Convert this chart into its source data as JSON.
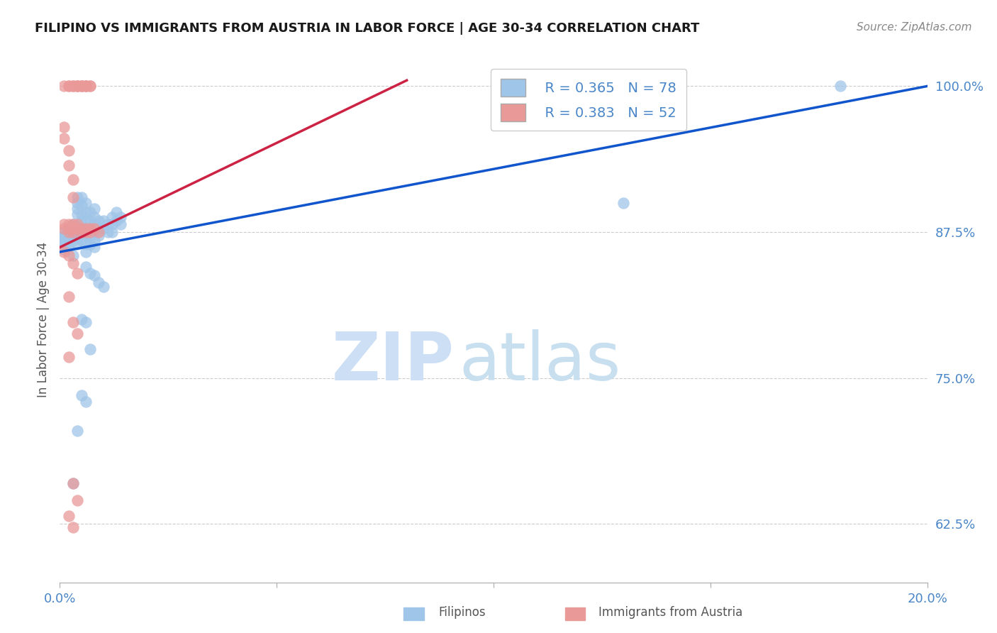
{
  "title": "FILIPINO VS IMMIGRANTS FROM AUSTRIA IN LABOR FORCE | AGE 30-34 CORRELATION CHART",
  "source": "Source: ZipAtlas.com",
  "ylabel": "In Labor Force | Age 30-34",
  "yticks": [
    0.625,
    0.75,
    0.875,
    1.0
  ],
  "ytick_labels": [
    "62.5%",
    "75.0%",
    "87.5%",
    "100.0%"
  ],
  "xmin": 0.0,
  "xmax": 0.2,
  "ymin": 0.575,
  "ymax": 1.025,
  "legend_blue_r": "R = 0.365",
  "legend_blue_n": "N = 78",
  "legend_pink_r": "R = 0.383",
  "legend_pink_n": "N = 52",
  "blue_color": "#9fc5e8",
  "pink_color": "#ea9999",
  "line_blue": "#1155cc",
  "line_pink": "#cc2244",
  "blue_scatter": [
    [
      0.001,
      0.875
    ],
    [
      0.001,
      0.872
    ],
    [
      0.001,
      0.87
    ],
    [
      0.001,
      0.868
    ],
    [
      0.001,
      0.865
    ],
    [
      0.001,
      0.863
    ],
    [
      0.001,
      0.86
    ],
    [
      0.002,
      0.878
    ],
    [
      0.002,
      0.875
    ],
    [
      0.002,
      0.872
    ],
    [
      0.002,
      0.869
    ],
    [
      0.002,
      0.866
    ],
    [
      0.002,
      0.863
    ],
    [
      0.003,
      0.882
    ],
    [
      0.003,
      0.878
    ],
    [
      0.003,
      0.875
    ],
    [
      0.003,
      0.872
    ],
    [
      0.003,
      0.868
    ],
    [
      0.003,
      0.855
    ],
    [
      0.004,
      0.905
    ],
    [
      0.004,
      0.9
    ],
    [
      0.004,
      0.895
    ],
    [
      0.004,
      0.89
    ],
    [
      0.004,
      0.88
    ],
    [
      0.004,
      0.875
    ],
    [
      0.004,
      0.87
    ],
    [
      0.004,
      0.865
    ],
    [
      0.005,
      0.905
    ],
    [
      0.005,
      0.898
    ],
    [
      0.005,
      0.89
    ],
    [
      0.005,
      0.885
    ],
    [
      0.005,
      0.878
    ],
    [
      0.005,
      0.873
    ],
    [
      0.005,
      0.868
    ],
    [
      0.006,
      0.9
    ],
    [
      0.006,
      0.892
    ],
    [
      0.006,
      0.885
    ],
    [
      0.006,
      0.878
    ],
    [
      0.006,
      0.872
    ],
    [
      0.006,
      0.865
    ],
    [
      0.006,
      0.858
    ],
    [
      0.007,
      0.892
    ],
    [
      0.007,
      0.885
    ],
    [
      0.007,
      0.878
    ],
    [
      0.007,
      0.872
    ],
    [
      0.007,
      0.865
    ],
    [
      0.008,
      0.895
    ],
    [
      0.008,
      0.888
    ],
    [
      0.008,
      0.882
    ],
    [
      0.008,
      0.875
    ],
    [
      0.008,
      0.868
    ],
    [
      0.008,
      0.862
    ],
    [
      0.009,
      0.885
    ],
    [
      0.009,
      0.878
    ],
    [
      0.009,
      0.872
    ],
    [
      0.01,
      0.885
    ],
    [
      0.01,
      0.878
    ],
    [
      0.011,
      0.882
    ],
    [
      0.011,
      0.875
    ],
    [
      0.012,
      0.888
    ],
    [
      0.012,
      0.882
    ],
    [
      0.012,
      0.875
    ],
    [
      0.013,
      0.892
    ],
    [
      0.013,
      0.885
    ],
    [
      0.014,
      0.888
    ],
    [
      0.014,
      0.882
    ],
    [
      0.006,
      0.845
    ],
    [
      0.007,
      0.84
    ],
    [
      0.008,
      0.838
    ],
    [
      0.009,
      0.832
    ],
    [
      0.01,
      0.828
    ],
    [
      0.005,
      0.8
    ],
    [
      0.006,
      0.798
    ],
    [
      0.007,
      0.775
    ],
    [
      0.005,
      0.735
    ],
    [
      0.006,
      0.73
    ],
    [
      0.004,
      0.705
    ],
    [
      0.003,
      0.66
    ],
    [
      0.18,
      1.0
    ],
    [
      0.13,
      0.9
    ]
  ],
  "pink_scatter": [
    [
      0.001,
      1.0
    ],
    [
      0.002,
      1.0
    ],
    [
      0.002,
      1.0
    ],
    [
      0.003,
      1.0
    ],
    [
      0.003,
      1.0
    ],
    [
      0.004,
      1.0
    ],
    [
      0.004,
      1.0
    ],
    [
      0.004,
      1.0
    ],
    [
      0.005,
      1.0
    ],
    [
      0.005,
      1.0
    ],
    [
      0.005,
      1.0
    ],
    [
      0.006,
      1.0
    ],
    [
      0.006,
      1.0
    ],
    [
      0.006,
      1.0
    ],
    [
      0.007,
      1.0
    ],
    [
      0.007,
      1.0
    ],
    [
      0.001,
      0.965
    ],
    [
      0.001,
      0.955
    ],
    [
      0.002,
      0.945
    ],
    [
      0.002,
      0.932
    ],
    [
      0.003,
      0.92
    ],
    [
      0.003,
      0.905
    ],
    [
      0.001,
      0.882
    ],
    [
      0.001,
      0.878
    ],
    [
      0.002,
      0.882
    ],
    [
      0.002,
      0.878
    ],
    [
      0.002,
      0.875
    ],
    [
      0.003,
      0.882
    ],
    [
      0.003,
      0.878
    ],
    [
      0.003,
      0.875
    ],
    [
      0.004,
      0.882
    ],
    [
      0.004,
      0.878
    ],
    [
      0.005,
      0.878
    ],
    [
      0.005,
      0.875
    ],
    [
      0.006,
      0.878
    ],
    [
      0.006,
      0.875
    ],
    [
      0.007,
      0.878
    ],
    [
      0.007,
      0.875
    ],
    [
      0.008,
      0.878
    ],
    [
      0.009,
      0.875
    ],
    [
      0.001,
      0.858
    ],
    [
      0.002,
      0.855
    ],
    [
      0.003,
      0.848
    ],
    [
      0.004,
      0.84
    ],
    [
      0.002,
      0.82
    ],
    [
      0.003,
      0.798
    ],
    [
      0.004,
      0.788
    ],
    [
      0.002,
      0.768
    ],
    [
      0.003,
      0.66
    ],
    [
      0.004,
      0.645
    ],
    [
      0.002,
      0.632
    ],
    [
      0.003,
      0.622
    ]
  ],
  "blue_line": [
    [
      0.0,
      0.858
    ],
    [
      0.2,
      1.0
    ]
  ],
  "pink_line": [
    [
      0.0,
      0.862
    ],
    [
      0.08,
      1.005
    ]
  ],
  "watermark_zip": "ZIP",
  "watermark_atlas": "atlas",
  "watermark_color": "#ccdff5"
}
